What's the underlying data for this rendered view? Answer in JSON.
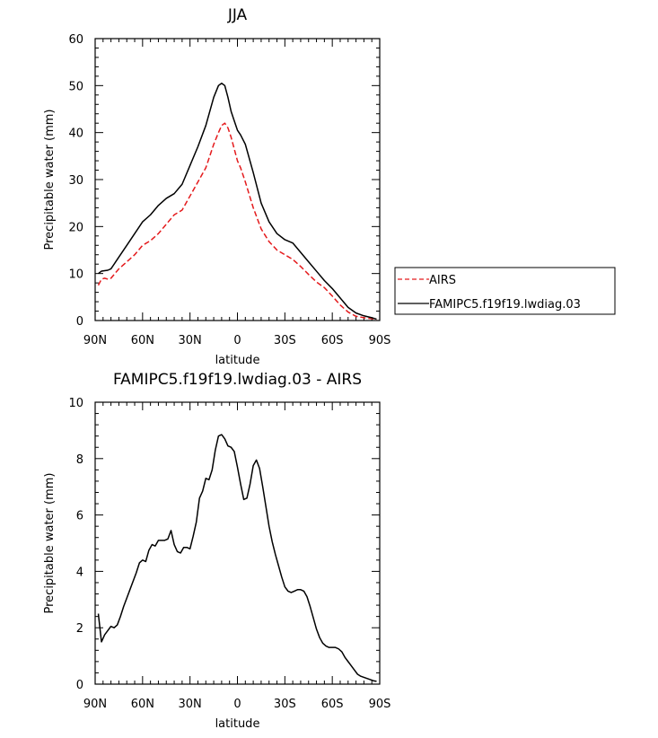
{
  "chart_data": [
    {
      "type": "line",
      "title": "JJA",
      "xlabel": "latitude",
      "ylabel": "Precipitable water (mm)",
      "xlim": [
        90,
        -90
      ],
      "ylim": [
        0,
        60
      ],
      "x_ticks": [
        90,
        60,
        30,
        0,
        -30,
        -60,
        -90
      ],
      "x_tick_labels": [
        "90N",
        "60N",
        "30N",
        "0",
        "30S",
        "60S",
        "90S"
      ],
      "y_ticks": [
        0,
        10,
        20,
        30,
        40,
        50,
        60
      ],
      "y_tick_labels": [
        "0",
        "10",
        "20",
        "30",
        "40",
        "50",
        "60"
      ],
      "legend": {
        "placement": "right"
      },
      "series": [
        {
          "name": "AIRS",
          "color": "#e41a1c",
          "dash": "dashed",
          "x": [
            88,
            86,
            84,
            82,
            80,
            75,
            70,
            65,
            60,
            55,
            50,
            45,
            40,
            35,
            30,
            25,
            20,
            15,
            12,
            10,
            8,
            6,
            4,
            2,
            0,
            -2,
            -5,
            -10,
            -15,
            -20,
            -25,
            -30,
            -35,
            -40,
            -45,
            -50,
            -55,
            -60,
            -65,
            -70,
            -75,
            -80,
            -85,
            -88
          ],
          "y": [
            7.5,
            8.8,
            9.0,
            8.8,
            9.0,
            11.0,
            12.5,
            14.0,
            16.0,
            17.0,
            18.5,
            20.5,
            22.5,
            23.5,
            26.5,
            29.5,
            32.5,
            37.5,
            40.0,
            41.5,
            42.0,
            41.0,
            39.0,
            36.5,
            34.0,
            32.5,
            29.5,
            24.0,
            19.5,
            16.8,
            15.0,
            14.0,
            13.0,
            11.5,
            9.8,
            8.2,
            7.0,
            5.2,
            3.3,
            1.8,
            0.9,
            0.6,
            0.4,
            0.2
          ]
        },
        {
          "name": "FAMIPC5.f19f19.lwdiag.03",
          "color": "#000000",
          "dash": "solid",
          "x": [
            88,
            86,
            84,
            82,
            80,
            75,
            70,
            65,
            60,
            55,
            50,
            45,
            40,
            35,
            30,
            25,
            20,
            15,
            12,
            10,
            8,
            6,
            4,
            2,
            0,
            -2,
            -5,
            -10,
            -15,
            -20,
            -25,
            -30,
            -35,
            -40,
            -45,
            -50,
            -55,
            -60,
            -65,
            -70,
            -75,
            -80,
            -85,
            -88
          ],
          "y": [
            10.0,
            10.5,
            10.6,
            10.7,
            11.0,
            13.5,
            16.0,
            18.5,
            21.0,
            22.5,
            24.5,
            26.0,
            27.0,
            29.0,
            33.0,
            37.0,
            41.5,
            47.5,
            50.0,
            50.5,
            50.0,
            47.5,
            44.5,
            42.5,
            40.5,
            39.5,
            37.5,
            31.5,
            25.0,
            21.0,
            18.5,
            17.2,
            16.5,
            14.5,
            12.5,
            10.5,
            8.5,
            6.8,
            4.8,
            2.8,
            1.6,
            1.0,
            0.6,
            0.3
          ]
        }
      ]
    },
    {
      "type": "line",
      "title": "FAMIPC5.f19f19.lwdiag.03 - AIRS",
      "xlabel": "latitude",
      "ylabel": "Precipitable water (mm)",
      "xlim": [
        90,
        -90
      ],
      "ylim": [
        0,
        10
      ],
      "x_ticks": [
        90,
        60,
        30,
        0,
        -30,
        -60,
        -90
      ],
      "x_tick_labels": [
        "90N",
        "60N",
        "30N",
        "0",
        "30S",
        "60S",
        "90S"
      ],
      "y_ticks": [
        0,
        2,
        4,
        6,
        8,
        10
      ],
      "y_tick_labels": [
        "0",
        "2",
        "4",
        "6",
        "8",
        "10"
      ],
      "series": [
        {
          "name": "FAMIPC5.f19f19.lwdiag.03 - AIRS",
          "color": "#000000",
          "dash": "solid",
          "x": [
            88,
            86,
            84,
            82,
            80,
            78,
            76,
            74,
            72,
            70,
            68,
            66,
            64,
            62,
            60,
            58,
            56,
            54,
            52,
            50,
            48,
            46,
            44,
            42,
            40,
            38,
            36,
            34,
            32,
            30,
            28,
            26,
            24,
            22,
            20,
            18,
            16,
            14,
            12,
            10,
            8,
            6,
            4,
            2,
            0,
            -2,
            -4,
            -6,
            -8,
            -10,
            -12,
            -14,
            -16,
            -18,
            -20,
            -22,
            -24,
            -26,
            -28,
            -30,
            -32,
            -34,
            -36,
            -38,
            -40,
            -42,
            -44,
            -46,
            -48,
            -50,
            -52,
            -54,
            -56,
            -58,
            -60,
            -62,
            -64,
            -66,
            -68,
            -70,
            -72,
            -74,
            -76,
            -78,
            -80,
            -82,
            -84,
            -86,
            -88
          ],
          "y": [
            2.5,
            1.5,
            1.75,
            1.9,
            2.05,
            2.0,
            2.1,
            2.4,
            2.75,
            3.05,
            3.35,
            3.65,
            3.95,
            4.3,
            4.4,
            4.35,
            4.75,
            4.95,
            4.9,
            5.1,
            5.1,
            5.1,
            5.15,
            5.45,
            4.95,
            4.7,
            4.65,
            4.85,
            4.85,
            4.8,
            5.25,
            5.75,
            6.6,
            6.85,
            7.3,
            7.25,
            7.6,
            8.3,
            8.8,
            8.85,
            8.7,
            8.45,
            8.4,
            8.25,
            7.7,
            7.1,
            6.55,
            6.6,
            7.1,
            7.75,
            7.95,
            7.65,
            7.0,
            6.3,
            5.6,
            5.05,
            4.6,
            4.2,
            3.8,
            3.45,
            3.3,
            3.25,
            3.3,
            3.35,
            3.35,
            3.3,
            3.1,
            2.75,
            2.35,
            1.95,
            1.65,
            1.45,
            1.35,
            1.3,
            1.3,
            1.3,
            1.25,
            1.15,
            0.95,
            0.8,
            0.65,
            0.5,
            0.35,
            0.28,
            0.24,
            0.2,
            0.16,
            0.12,
            0.1
          ]
        }
      ]
    }
  ]
}
